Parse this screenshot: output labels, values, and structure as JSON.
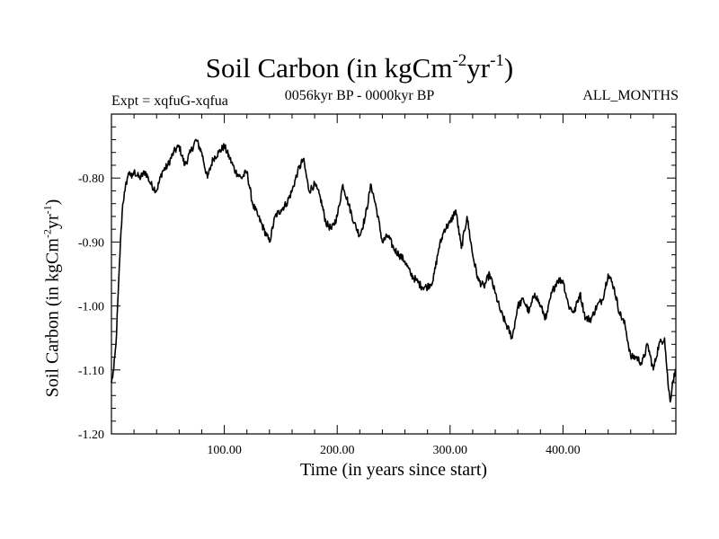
{
  "chart_data": {
    "type": "line",
    "title": {
      "base": "Soil Carbon (in kgCm",
      "exp1": "-2",
      "mid": "yr",
      "exp2": "-1",
      "end": ")"
    },
    "subtitle_left": "Expt = xqfuG-xqfua",
    "subtitle_center": "0056kyr BP - 0000kyr BP",
    "subtitle_right": "ALL_MONTHS",
    "xlabel": "Time (in years since start)",
    "ylabel": {
      "base": "Soil Carbon (in kgCm",
      "exp1": "-2",
      "mid": "yr",
      "exp2": "-1",
      "end": ")"
    },
    "xlim": [
      0,
      500
    ],
    "ylim": [
      -1.2,
      -0.7
    ],
    "x_ticks": [
      {
        "value": 100,
        "label": "100.00"
      },
      {
        "value": 200,
        "label": "200.00"
      },
      {
        "value": 300,
        "label": "300.00"
      },
      {
        "value": 400,
        "label": "400.00"
      }
    ],
    "y_ticks": [
      {
        "value": -0.8,
        "label": "-0.80"
      },
      {
        "value": -0.9,
        "label": "-0.90"
      },
      {
        "value": -1.0,
        "label": "-1.00"
      },
      {
        "value": -1.1,
        "label": "-1.10"
      },
      {
        "value": -1.2,
        "label": "-1.20"
      }
    ],
    "series": [
      {
        "name": "Soil Carbon",
        "color": "#000000",
        "x": [
          0,
          2,
          4,
          6,
          8,
          10,
          12,
          14,
          16,
          18,
          20,
          25,
          30,
          35,
          40,
          45,
          50,
          55,
          60,
          65,
          70,
          75,
          80,
          85,
          90,
          95,
          100,
          105,
          110,
          115,
          120,
          125,
          130,
          135,
          140,
          145,
          150,
          155,
          160,
          165,
          170,
          175,
          180,
          185,
          190,
          195,
          200,
          205,
          210,
          215,
          220,
          225,
          230,
          235,
          240,
          245,
          250,
          255,
          260,
          265,
          270,
          275,
          280,
          285,
          290,
          295,
          300,
          305,
          310,
          315,
          320,
          325,
          330,
          335,
          340,
          345,
          350,
          355,
          360,
          365,
          370,
          375,
          380,
          385,
          390,
          395,
          400,
          405,
          410,
          415,
          420,
          425,
          430,
          435,
          440,
          445,
          450,
          455,
          460,
          465,
          470,
          475,
          480,
          485,
          490,
          493,
          495,
          497,
          500
        ],
        "values": [
          -1.12,
          -1.1,
          -1.06,
          -0.98,
          -0.9,
          -0.84,
          -0.82,
          -0.8,
          -0.79,
          -0.8,
          -0.79,
          -0.8,
          -0.79,
          -0.81,
          -0.82,
          -0.79,
          -0.78,
          -0.76,
          -0.75,
          -0.78,
          -0.76,
          -0.74,
          -0.76,
          -0.8,
          -0.77,
          -0.76,
          -0.75,
          -0.77,
          -0.79,
          -0.8,
          -0.79,
          -0.84,
          -0.86,
          -0.88,
          -0.9,
          -0.86,
          -0.85,
          -0.84,
          -0.82,
          -0.79,
          -0.77,
          -0.82,
          -0.81,
          -0.83,
          -0.87,
          -0.88,
          -0.86,
          -0.81,
          -0.84,
          -0.87,
          -0.89,
          -0.86,
          -0.81,
          -0.85,
          -0.9,
          -0.89,
          -0.91,
          -0.92,
          -0.93,
          -0.95,
          -0.96,
          -0.97,
          -0.97,
          -0.96,
          -0.91,
          -0.88,
          -0.87,
          -0.85,
          -0.91,
          -0.86,
          -0.92,
          -0.96,
          -0.97,
          -0.95,
          -0.98,
          -1.01,
          -1.03,
          -1.05,
          -1.0,
          -0.99,
          -1.01,
          -0.98,
          -1.0,
          -1.02,
          -0.98,
          -0.96,
          -0.96,
          -1.0,
          -1.01,
          -0.98,
          -1.02,
          -1.02,
          -1.0,
          -0.99,
          -0.95,
          -0.97,
          -1.01,
          -1.03,
          -1.08,
          -1.08,
          -1.09,
          -1.06,
          -1.1,
          -1.06,
          -1.05,
          -1.12,
          -1.15,
          -1.12,
          -1.1
        ]
      }
    ]
  }
}
